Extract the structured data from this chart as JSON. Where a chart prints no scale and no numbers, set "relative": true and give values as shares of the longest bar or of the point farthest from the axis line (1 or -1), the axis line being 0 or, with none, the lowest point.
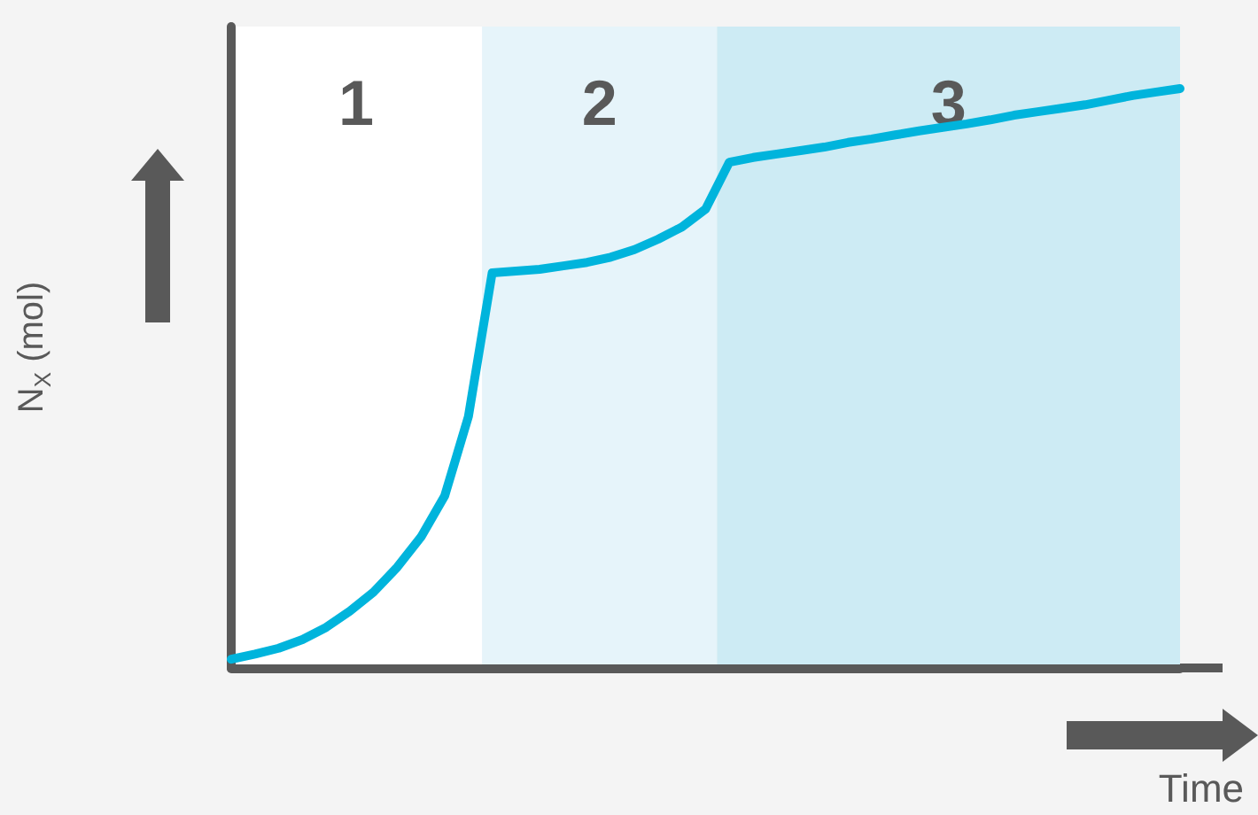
{
  "chart_data": {
    "type": "line",
    "relative": true,
    "xlabel": "Time",
    "ylabel": "N$_{X}$ (mol)",
    "grid": false,
    "marker": "none",
    "line_style": "solid",
    "categories": [
      null,
      null,
      null,
      null,
      null,
      null,
      null,
      null,
      null,
      null,
      null,
      null,
      null,
      null,
      null,
      null,
      null,
      null,
      null,
      null,
      null,
      null,
      null,
      null,
      null,
      null,
      null,
      null,
      null,
      null,
      null,
      null,
      null,
      null,
      null,
      null,
      null,
      null,
      null,
      null,
      null
    ],
    "series": [
      {
        "color": "#00b4dc",
        "values": [
          0.015,
          0.024,
          0.034,
          0.049,
          0.07,
          0.098,
          0.131,
          0.174,
          0.226,
          0.297,
          0.434,
          0.682,
          0.685,
          0.688,
          0.694,
          0.7,
          0.709,
          0.722,
          0.74,
          0.761,
          0.792,
          0.873,
          0.881,
          0.887,
          0.893,
          0.899,
          0.907,
          0.913,
          0.92,
          0.927,
          0.933,
          0.939,
          0.946,
          0.954,
          0.96,
          0.966,
          0.972,
          0.98,
          0.988,
          0.994,
          1.0
        ]
      }
    ],
    "annotations": [
      "1",
      "2",
      "3"
    ]
  }
}
